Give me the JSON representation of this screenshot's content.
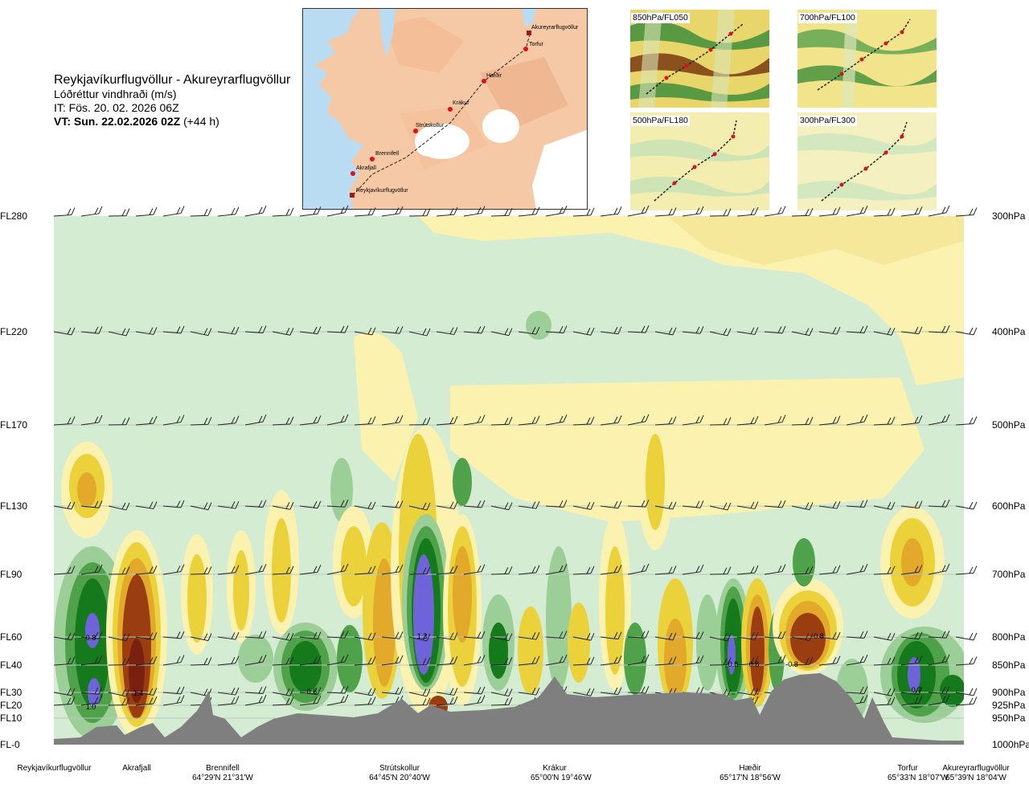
{
  "header": {
    "route": "Reykjavíkurflugvöllur - Akureyrarflugvöllur",
    "product": "Lóðréttur vindhraði (m/s)",
    "issue_time": "IT: Fös. 20. 02. 2026 06Z",
    "valid_time_bold": "VT: Sun. 22.02.2026 02Z",
    "valid_time_offset": "(+44 h)"
  },
  "route_map": {
    "points": [
      {
        "name": "Akureyrarflugvöllur",
        "kind": "airport"
      },
      {
        "name": "Torfur",
        "kind": "waypoint"
      },
      {
        "name": "Hæðir",
        "kind": "waypoint"
      },
      {
        "name": "Krákur",
        "kind": "waypoint"
      },
      {
        "name": "Strútskollur",
        "kind": "waypoint"
      },
      {
        "name": "Brennifell",
        "kind": "waypoint"
      },
      {
        "name": "Akrafjall",
        "kind": "waypoint"
      },
      {
        "name": "Reykjavíkurflugvöllur",
        "kind": "airport"
      }
    ],
    "colors": {
      "sea": "#b9dcf2",
      "land": "#f6c9a6",
      "ice": "#ffffff",
      "route": "#222222",
      "marker": "#e0101a"
    }
  },
  "mini_maps": [
    {
      "label": "850hPa/FL050",
      "style": "dense"
    },
    {
      "label": "700hPa/FL100",
      "style": "dense"
    },
    {
      "label": "500hPa/FL180",
      "style": "sparse"
    },
    {
      "label": "300hPa/FL300",
      "style": "sparse"
    }
  ],
  "chart_data": {
    "type": "heatmap",
    "title": "Lóðréttur vindhraði (m/s)",
    "y_levels": [
      {
        "fl": "FL280",
        "hpa": "300hPa"
      },
      {
        "fl": "FL220",
        "hpa": "400hPa"
      },
      {
        "fl": "FL170",
        "hpa": "500hPa"
      },
      {
        "fl": "FL130",
        "hpa": "600hPa"
      },
      {
        "fl": "FL90",
        "hpa": "700hPa"
      },
      {
        "fl": "FL60",
        "hpa": "800hPa"
      },
      {
        "fl": "FL40",
        "hpa": "850hPa"
      },
      {
        "fl": "FL30",
        "hpa": "900hPa"
      },
      {
        "fl": "FL20",
        "hpa": "925hPa"
      },
      {
        "fl": "FL10",
        "hpa": "950hPa"
      },
      {
        "fl": "FL-0",
        "hpa": "1000hPa"
      }
    ],
    "stations": [
      {
        "name": "Reykjavíkurflugvöllur",
        "coord": ""
      },
      {
        "name": "Akrafjall",
        "coord": ""
      },
      {
        "name": "Brennifell",
        "coord": "64°29'N 21°31'W"
      },
      {
        "name": "Strútskollur",
        "coord": "64°45'N 20°40'W"
      },
      {
        "name": "Krákur",
        "coord": "65°00'N 19°46'W"
      },
      {
        "name": "Hæðir",
        "coord": "65°17'N 18°56'W"
      },
      {
        "name": "Torfur",
        "coord": "65°33'N 18°07'W"
      },
      {
        "name": "Akureyrarflugvöllur",
        "coord": "65°39'N 18°04'W"
      }
    ],
    "value_labels": [
      "0.8",
      "1.0",
      "1.4",
      "0.6",
      "1.3",
      "0.8",
      "0.8",
      "-0.8",
      "-0.8",
      "0.7"
    ],
    "colors": {
      "background": "#d3ecd2",
      "up_weak": "#9ccf97",
      "up_mid": "#4fa24a",
      "up_strong": "#157a1c",
      "up_max": "#6f63d9",
      "down_weak": "#fbf2b0",
      "down_mid": "#ecd23a",
      "down_strong": "#e3a92a",
      "down_max": "#9a3e12",
      "terrain": "#7f7f7f"
    }
  }
}
